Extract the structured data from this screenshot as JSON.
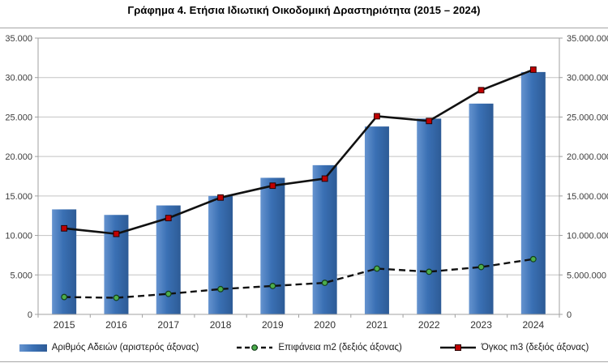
{
  "chart_data": {
    "type": "combo-bar-line",
    "title": "Γράφημα 4. Ετήσια Ιδιωτική Οικοδομική Δραστηριότητα (2015 – 2024)",
    "categories": [
      "2015",
      "2016",
      "2017",
      "2018",
      "2019",
      "2020",
      "2021",
      "2022",
      "2023",
      "2024"
    ],
    "series": [
      {
        "name": "Αριθμός Αδειών (αριστερός άξονας)",
        "type": "bar",
        "axis": "left",
        "color": "#3a70b4",
        "gradient": [
          "#6593cf",
          "#3a70b4",
          "#2d5b96"
        ],
        "values": [
          13300,
          12600,
          13800,
          15000,
          17300,
          18900,
          23800,
          24800,
          26700,
          30700
        ]
      },
      {
        "name": "Επιφάνεια m2 (δεξιός άξονας)",
        "type": "line",
        "line_style": "dashed",
        "axis": "right",
        "line_color": "#111111",
        "marker": "circle",
        "marker_color": "#4cae4c",
        "marker_edge": "#14401a",
        "values": [
          2200000,
          2100000,
          2600000,
          3200000,
          3600000,
          4000000,
          5800000,
          5400000,
          6000000,
          7000000
        ]
      },
      {
        "name": "Όγκος m3 (δεξιός άξονας)",
        "type": "line",
        "line_style": "solid",
        "axis": "right",
        "line_color": "#111111",
        "marker": "square",
        "marker_color": "#c00000",
        "marker_edge": "#2b0000",
        "values": [
          10900000,
          10200000,
          12200000,
          14800000,
          16300000,
          17200000,
          25100000,
          24500000,
          28400000,
          31000000
        ]
      }
    ],
    "left_axis": {
      "min": 0,
      "max": 35000,
      "step": 5000
    },
    "right_axis": {
      "min": 0,
      "max": 35000000,
      "step": 5000000
    },
    "grid": true,
    "gridline_color": "#c3c3c3",
    "plot_border_color": "#a0a0a0",
    "tick_label_color": "#3c3c3c",
    "legend_position": "bottom"
  }
}
